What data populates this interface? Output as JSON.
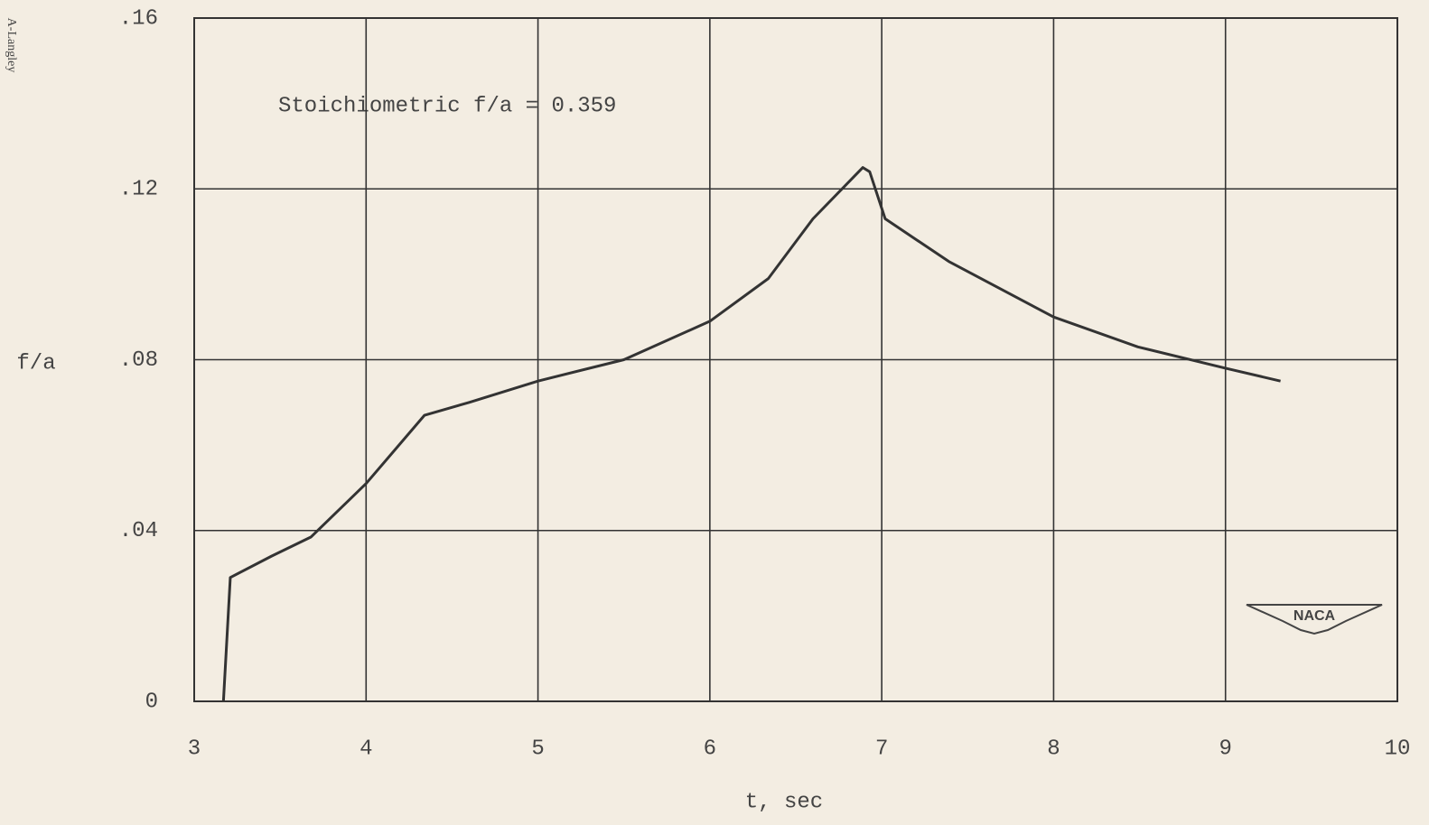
{
  "chart_data": {
    "type": "line",
    "margin_text": "A-Langley",
    "annotation": "Stoichiometric f/a = 0.359",
    "logo": "NACA",
    "xlabel": "t, sec",
    "ylabel": "f/a",
    "xlim": [
      3,
      10
    ],
    "ylim": [
      0,
      0.16
    ],
    "xticks": [
      3,
      4,
      5,
      6,
      7,
      8,
      9,
      10
    ],
    "yticks": [
      0,
      {
        "value": 0.04,
        "label": ".04"
      },
      {
        "value": 0.08,
        "label": ".08"
      },
      {
        "value": 0.12,
        "label": ".12"
      },
      {
        "value": 0.16,
        "label": ".16"
      }
    ],
    "grid": true,
    "series": [
      {
        "color": "#333333",
        "x": [
          3.17,
          3.21,
          3.45,
          3.68,
          4.0,
          4.34,
          4.6,
          5.0,
          5.5,
          6.0,
          6.34,
          6.6,
          6.89,
          6.93,
          7.02,
          7.39,
          8.0,
          8.49,
          9.0,
          9.32
        ],
        "values": [
          0,
          0.029,
          0.034,
          0.0385,
          0.051,
          0.067,
          0.07,
          0.075,
          0.08,
          0.089,
          0.099,
          0.113,
          0.125,
          0.124,
          0.113,
          0.103,
          0.09,
          0.083,
          0.078,
          0.075
        ]
      }
    ]
  }
}
